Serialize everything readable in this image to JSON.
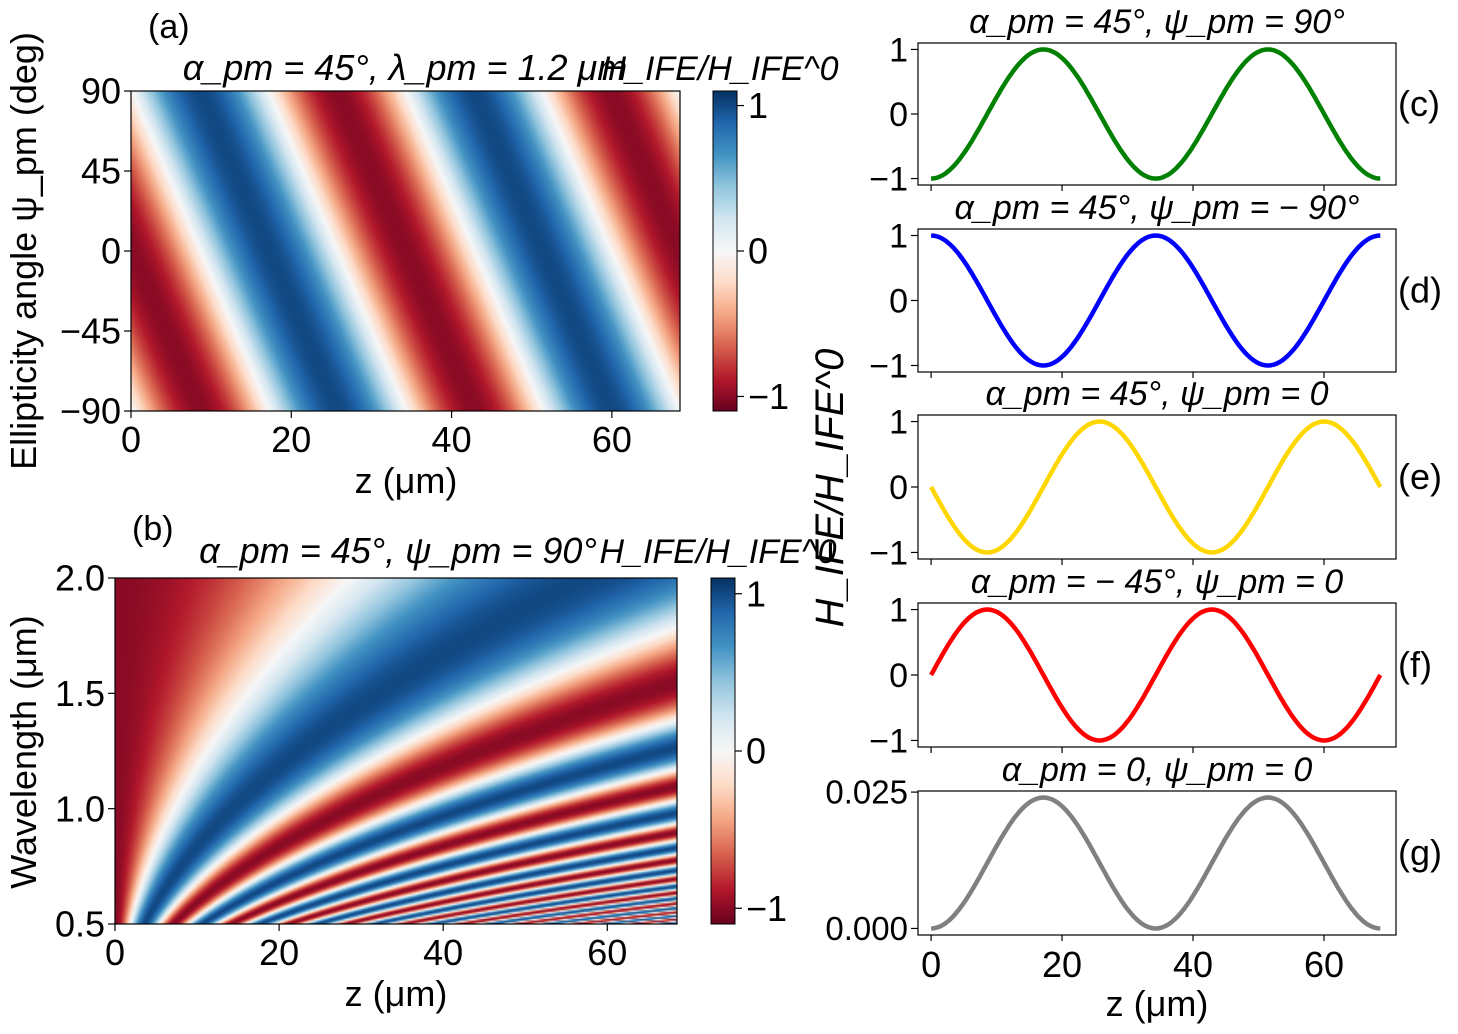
{
  "chart_data": [
    {
      "panel": "(a)",
      "type": "heatmap",
      "title": "α_pm = 45°, λ_pm = 1.2 μm",
      "xlabel": "z (μm)",
      "ylabel": "Ellipticity angle ψ_pm (deg)",
      "xlim": [
        0,
        68.5
      ],
      "ylim": [
        -90,
        90
      ],
      "xticks": [
        "0",
        "20",
        "40",
        "60"
      ],
      "yticks": [
        "90",
        "45",
        "0",
        "−45",
        "−90"
      ],
      "xtick_values": [
        0,
        20,
        40,
        60
      ],
      "ytick_values": [
        90,
        45,
        0,
        -45,
        -90
      ],
      "colorbar": {
        "label": "H_IFE/H_IFE^0",
        "range": [
          -1.1,
          1.1
        ],
        "ticks": [
          "1",
          "0",
          "−1"
        ],
        "tick_values": [
          1,
          0,
          -1
        ],
        "colormap": "RdBu"
      },
      "model": "-cos(2*pi*z/34.3 + 2*pi*psi/360)"
    },
    {
      "panel": "(b)",
      "type": "heatmap",
      "title": "α_pm = 45°, ψ_pm = 90°",
      "xlabel": "z (μm)",
      "ylabel": "Wavelength (μm)",
      "xlim": [
        0,
        68.5
      ],
      "ylim": [
        0.5,
        2.0
      ],
      "xticks": [
        "0",
        "20",
        "40",
        "60"
      ],
      "yticks": [
        "2.0",
        "1.5",
        "1.0",
        "0.5"
      ],
      "xtick_values": [
        0,
        20,
        40,
        60
      ],
      "ytick_values": [
        2.0,
        1.5,
        1.0,
        0.5
      ],
      "colorbar": {
        "label": "H_IFE/H_IFE^0",
        "range": [
          -1.1,
          1.1
        ],
        "ticks": [
          "1",
          "0",
          "−1"
        ],
        "tick_values": [
          1,
          0,
          -1
        ],
        "colormap": "RdBu"
      },
      "model": "-cos(2*pi*z*1.2/(34.3*lambda^2))"
    },
    {
      "panel": "(c)",
      "type": "line",
      "title": "α_pm = 45°, ψ_pm = 90°",
      "color": "#008000",
      "ylim": [
        -1.1,
        1.1
      ],
      "yticks": [
        "1",
        "0",
        "−1"
      ],
      "ytick_values": [
        1,
        0,
        -1
      ],
      "x": [
        0,
        4.3,
        8.6,
        12.9,
        17.2,
        21.4,
        25.7,
        30,
        34.3,
        38.6,
        42.9,
        47.2,
        51.5,
        55.7,
        60,
        64.3,
        68.6
      ],
      "y": [
        -1,
        -0.71,
        0,
        0.71,
        1,
        0.71,
        0,
        -0.71,
        -1,
        -0.71,
        0,
        0.71,
        1,
        0.71,
        0,
        -0.71,
        -1
      ]
    },
    {
      "panel": "(d)",
      "type": "line",
      "title": "α_pm = 45°, ψ_pm = − 90°",
      "color": "#0000ff",
      "ylim": [
        -1.1,
        1.1
      ],
      "yticks": [
        "1",
        "0",
        "−1"
      ],
      "ytick_values": [
        1,
        0,
        -1
      ],
      "x": [
        0,
        4.3,
        8.6,
        12.9,
        17.2,
        21.4,
        25.7,
        30,
        34.3,
        38.6,
        42.9,
        47.2,
        51.5,
        55.7,
        60,
        64.3,
        68.6
      ],
      "y": [
        1,
        0.71,
        0,
        -0.71,
        -1,
        -0.71,
        0,
        0.71,
        1,
        0.71,
        0,
        -0.71,
        -1,
        -0.71,
        0,
        0.71,
        1
      ]
    },
    {
      "panel": "(e)",
      "type": "line",
      "title": "α_pm = 45°, ψ_pm = 0",
      "color": "#ffd700",
      "ylim": [
        -1.1,
        1.1
      ],
      "yticks": [
        "1",
        "0",
        "−1"
      ],
      "ytick_values": [
        1,
        0,
        -1
      ],
      "x": [
        0,
        4.3,
        8.6,
        12.9,
        17.2,
        21.4,
        25.7,
        30,
        34.3,
        38.6,
        42.9,
        47.2,
        51.5,
        55.7,
        60,
        64.3,
        68.6
      ],
      "y": [
        0,
        -0.71,
        -1,
        -0.71,
        0,
        0.71,
        1,
        0.71,
        0,
        -0.71,
        -1,
        -0.71,
        0,
        0.71,
        1,
        0.71,
        0
      ]
    },
    {
      "panel": "(f)",
      "type": "line",
      "title": "α_pm = − 45°, ψ_pm = 0",
      "color": "#ff0000",
      "ylim": [
        -1.1,
        1.1
      ],
      "yticks": [
        "1",
        "0",
        "−1"
      ],
      "ytick_values": [
        1,
        0,
        -1
      ],
      "x": [
        0,
        4.3,
        8.6,
        12.9,
        17.2,
        21.4,
        25.7,
        30,
        34.3,
        38.6,
        42.9,
        47.2,
        51.5,
        55.7,
        60,
        64.3,
        68.6
      ],
      "y": [
        0,
        0.71,
        1,
        0.71,
        0,
        -0.71,
        -1,
        -0.71,
        0,
        0.71,
        1,
        0.71,
        0,
        -0.71,
        -1,
        -0.71,
        0
      ]
    },
    {
      "panel": "(g)",
      "type": "line",
      "title": "α_pm = 0, ψ_pm = 0",
      "color": "#808080",
      "ylim": [
        -0.0012,
        0.0252
      ],
      "yticks": [
        "0.025",
        "0.000"
      ],
      "ytick_values": [
        0.025,
        0
      ],
      "xlabel": "z (μm)",
      "xticks": [
        "0",
        "20",
        "40",
        "60"
      ],
      "xtick_values": [
        0,
        20,
        40,
        60
      ],
      "x": [
        0,
        4.3,
        8.6,
        12.9,
        17.2,
        21.4,
        25.7,
        30,
        34.3,
        38.6,
        42.9,
        47.2,
        51.5,
        55.7,
        60,
        64.3,
        68.6
      ],
      "y": [
        0,
        0.0035,
        0.012,
        0.0205,
        0.024,
        0.0205,
        0.012,
        0.0035,
        0,
        0.0035,
        0.012,
        0.0205,
        0.024,
        0.0205,
        0.012,
        0.0035,
        0
      ]
    }
  ],
  "shared": {
    "line_panels_ylabel": "H_IFE/H_IFE^0",
    "line_panels_xlim": [
      -2,
      71
    ]
  }
}
